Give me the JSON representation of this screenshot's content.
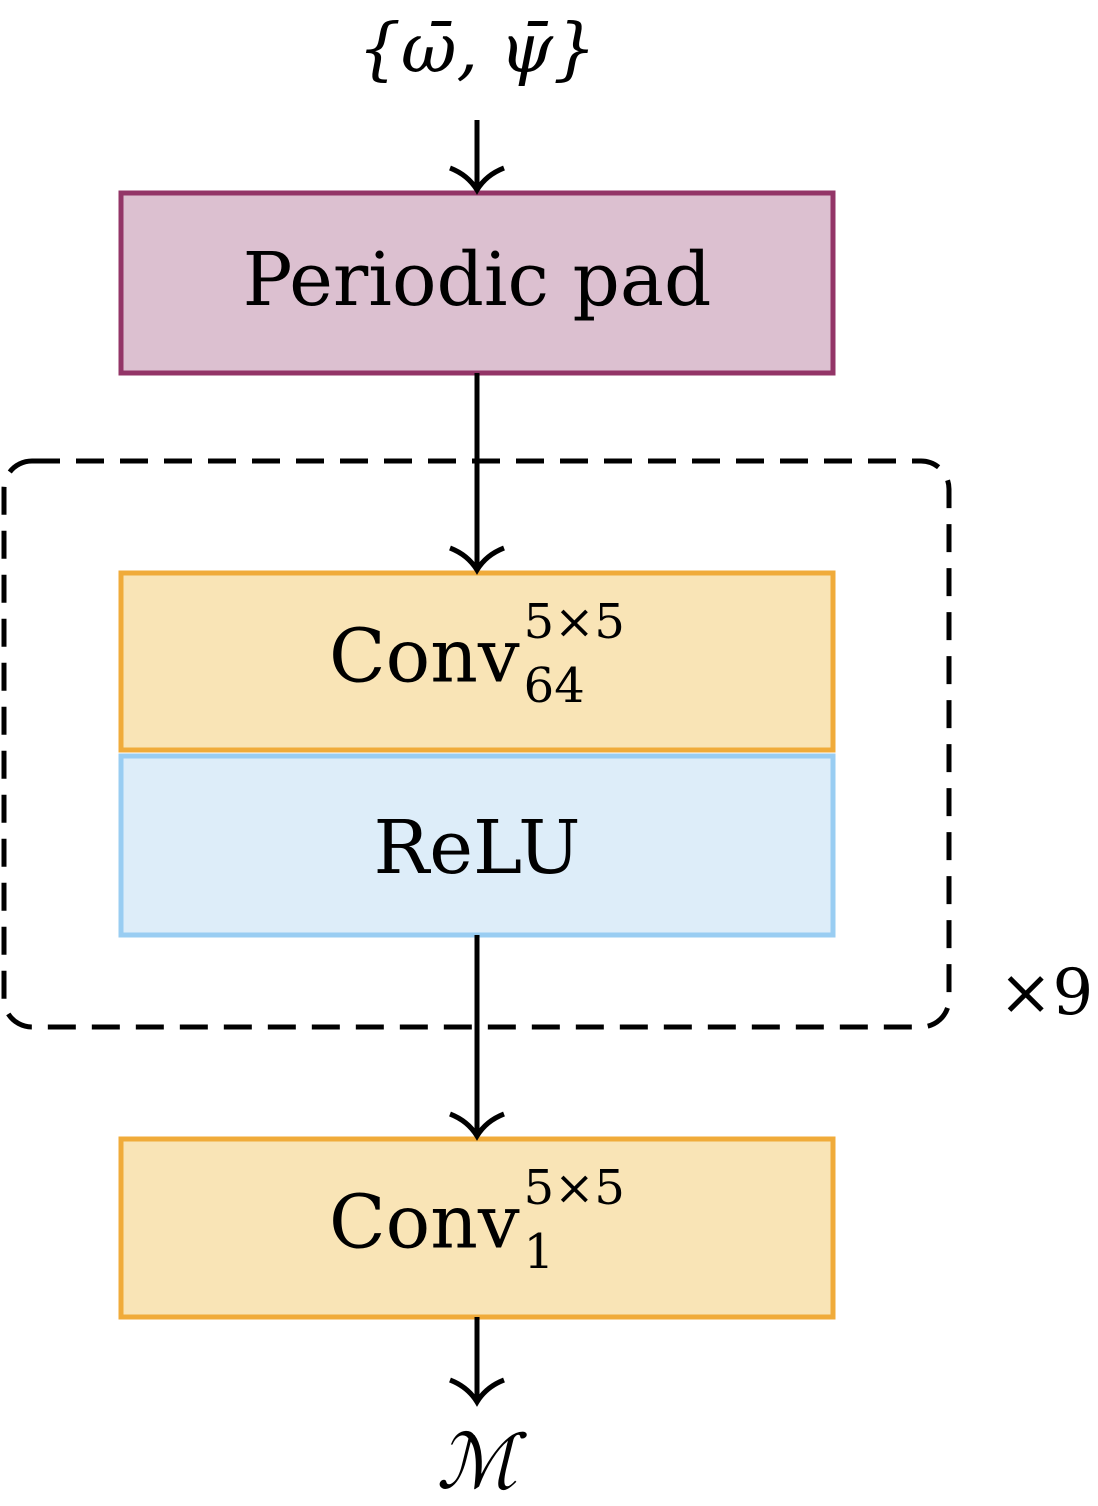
{
  "diagram": {
    "input_label": "{ω̄, ψ̄}",
    "output_label": "ℳ",
    "repeat_label": "×9",
    "blocks": {
      "pad": {
        "label": "Periodic pad",
        "fill": "#dcc0d0",
        "stroke": "#933567"
      },
      "conv1": {
        "label": "Conv",
        "sup": "5×5",
        "sub": "64",
        "fill": "#f9e4b6",
        "stroke": "#f0ab3a"
      },
      "relu": {
        "label": "ReLU",
        "fill": "#ddedf9",
        "stroke": "#99cdf2"
      },
      "conv2": {
        "label": "Conv",
        "sup": "5×5",
        "sub": "1",
        "fill": "#f9e4b6",
        "stroke": "#f0ab3a"
      }
    }
  }
}
